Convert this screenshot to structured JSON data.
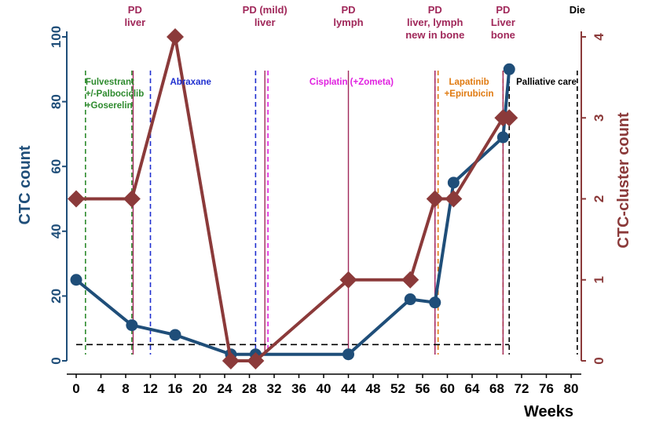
{
  "chart_data": {
    "type": "line",
    "xlabel": "Weeks",
    "ylabel": "CTC count",
    "y2label": "CTC-cluster count",
    "xlim": [
      -2,
      84
    ],
    "ylim": [
      0,
      100
    ],
    "y2lim": [
      0,
      4
    ],
    "xticks": [
      0,
      4,
      8,
      12,
      16,
      20,
      24,
      28,
      32,
      36,
      40,
      44,
      48,
      52,
      56,
      60,
      64,
      68,
      72,
      76,
      80
    ],
    "yticks": [
      0,
      20,
      40,
      60,
      80,
      100
    ],
    "y2ticks": [
      0,
      1,
      2,
      3,
      4
    ],
    "grid": false,
    "threshold": {
      "y": 5,
      "x_range": [
        0,
        70
      ],
      "color": "#000000"
    },
    "series": [
      {
        "name": "CTC count",
        "axis": "left",
        "color": "#1f4e79",
        "marker": "circle",
        "x": [
          0,
          9,
          16,
          25,
          29,
          44,
          54,
          58,
          61,
          69,
          70
        ],
        "y": [
          25,
          11,
          8,
          2,
          2,
          2,
          19,
          18,
          55,
          69,
          90
        ]
      },
      {
        "name": "CTC-cluster count",
        "axis": "right",
        "color": "#8b3a3a",
        "marker": "diamond",
        "x": [
          0,
          9,
          16,
          25,
          29,
          44,
          54,
          58,
          61,
          69,
          70
        ],
        "y": [
          2,
          2,
          4,
          0,
          0,
          1,
          1,
          2,
          2,
          3,
          3
        ]
      }
    ],
    "treatment_lines": [
      {
        "x": 1.5,
        "color": "#2e8b2e"
      },
      {
        "x": 9,
        "color": "#2e8b2e"
      },
      {
        "x": 12,
        "color": "#1f2fd0"
      },
      {
        "x": 29,
        "color": "#1f2fd0"
      },
      {
        "x": 31,
        "color": "#e020e0"
      },
      {
        "x": 58,
        "color": "#e020e0"
      },
      {
        "x": 58.5,
        "color": "#e07a10"
      },
      {
        "x": 69,
        "color": "#e07a10"
      },
      {
        "x": 70,
        "color": "#000000"
      },
      {
        "x": 81,
        "color": "#000000"
      }
    ],
    "event_lines": [
      {
        "x": 9.2
      },
      {
        "x": 30.5
      },
      {
        "x": 44
      },
      {
        "x": 58
      },
      {
        "x": 69
      }
    ],
    "event_labels": [
      {
        "x": 9.5,
        "lines": [
          "PD",
          "liver"
        ],
        "color": "#a0285a"
      },
      {
        "x": 30.5,
        "lines": [
          "PD (mild)",
          "liver"
        ],
        "color": "#a0285a"
      },
      {
        "x": 44,
        "lines": [
          "PD",
          "lymph"
        ],
        "color": "#a0285a"
      },
      {
        "x": 58,
        "lines": [
          "PD",
          "liver, lymph",
          "new in bone"
        ],
        "color": "#a0285a"
      },
      {
        "x": 69,
        "lines": [
          "PD",
          "Liver",
          "bone"
        ],
        "color": "#a0285a"
      },
      {
        "x": 81,
        "lines": [
          "Die"
        ],
        "color": "#000000"
      }
    ],
    "treatment_labels": [
      {
        "x": 1.5,
        "lines": [
          "Fulvestrant",
          "+/-Palbociclib",
          "+Goserelin"
        ],
        "color": "#2e8b2e"
      },
      {
        "x": 18.5,
        "lines": [
          "Abraxane"
        ],
        "color": "#1f2fd0"
      },
      {
        "x": 44.5,
        "lines": [
          "Cisplatin (+Zometa)"
        ],
        "color": "#e020e0"
      },
      {
        "x": 63.5,
        "lines": [
          "Lapatinib",
          "+Epirubicin"
        ],
        "color": "#e07a10"
      },
      {
        "x": 76,
        "lines": [
          "Palliative care"
        ],
        "color": "#000000"
      }
    ]
  }
}
